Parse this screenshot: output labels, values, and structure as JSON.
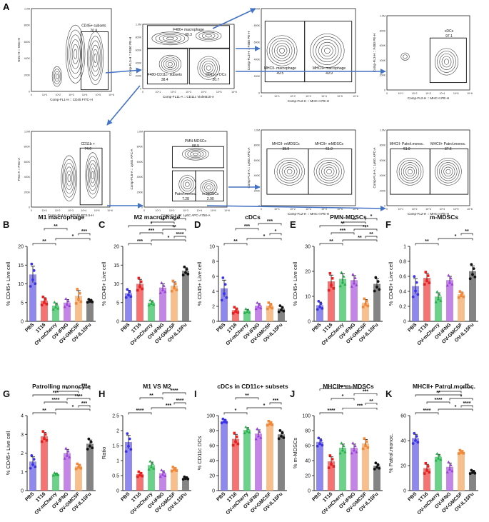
{
  "flow": {
    "panel_label": "A",
    "plots": [
      {
        "id": "p1",
        "xlabel": "Comp-FL1-H :: CD45 FITC-H",
        "ylabel": "SSC-H :: SSC-H",
        "gates": [
          {
            "name": "CD45+ subsets",
            "value": "70.8"
          }
        ]
      },
      {
        "id": "p2",
        "xlabel": "Comp-FL11-A :: CD11c Violet610-A",
        "ylabel": "Comp-FL3-H :: F480 PE-H",
        "gates": [
          {
            "name": "F480+ macrophage",
            "value": "39.3"
          },
          {
            "name": "F480-CD11c- subsets",
            "value": "38.4"
          },
          {
            "name": "CD11c+ DCs",
            "value": "20.7"
          }
        ]
      },
      {
        "id": "p3",
        "xlabel": "Comp-FL2-H :: MHC-II PE-H",
        "ylabel": "Comp-FL3-H :: F480 PE-H",
        "gates": [
          {
            "name": "MHCII- macrophage",
            "value": "49.5"
          },
          {
            "name": "MHCII+ macrophage",
            "value": "49.9"
          }
        ]
      },
      {
        "id": "p4",
        "xlabel": "Comp-FL2-H :: MHC-II PE-H",
        "ylabel": "Comp-FL3-H :: F480 PE-H",
        "gates": [
          {
            "name": "cDCs",
            "value": "97.1"
          }
        ]
      },
      {
        "id": "p5",
        "xlabel": "Comp-FL4-H :: CD11b PC5.5-H",
        "ylabel": "FSC-A :: FSC-A",
        "gates": [
          {
            "name": "CD11b +",
            "value": "74.6"
          }
        ]
      },
      {
        "id": "p6",
        "xlabel": "Comp-FL8-A :: Ly6C APC-A750-A",
        "ylabel": "Comp-FL6-A :: Ly6G APC-A",
        "gates": [
          {
            "name": "PMN-MDSCs",
            "value": "88.9"
          },
          {
            "name": "Patrol.monoc.",
            "value": "7.28"
          },
          {
            "name": "m-MDSCs",
            "value": "2.90"
          }
        ]
      },
      {
        "id": "p7",
        "xlabel": "Comp-FL2-H :: MHC-II PE-H",
        "ylabel": "Comp-FL6-A :: Ly6G APC-A",
        "gates": [
          {
            "name": "MHCII- mMDSCs",
            "value": "38.9"
          },
          {
            "name": "MHCII+ mMDSCs",
            "value": "61.0"
          }
        ]
      },
      {
        "id": "p8",
        "xlabel": "Comp-FL2-H :: MHC-II PE-H",
        "ylabel": "Comp-FL6-A :: Ly6G APC-A",
        "gates": [
          {
            "name": "MHCII- Patrol.monoc.",
            "value": "61.9"
          },
          {
            "name": "MHCII+ Patrol.monoc.",
            "value": "37.6"
          }
        ]
      }
    ],
    "ytick_labels": [
      "1.0M",
      "800K",
      "600K",
      "400K",
      "200K",
      "0"
    ],
    "xtick_labels": [
      "0",
      "10^1",
      "10^2",
      "10^3",
      "10^4",
      "10^5",
      "10^6"
    ]
  },
  "chart_data": [
    {
      "panel": "B",
      "type": "bar",
      "title": "M1 macrophage",
      "ylabel": "% CD45+ Live cell",
      "ylim": [
        0,
        20
      ],
      "yticks": [
        0,
        5,
        10,
        15,
        20
      ],
      "categories": [
        "PBS",
        "1T16",
        "OV-mCherry",
        "OV-IFNG",
        "OV-GMCSF",
        "OV-IL15Fu"
      ],
      "values": [
        12.5,
        5.5,
        4.2,
        5.0,
        6.8,
        5.5
      ],
      "errors": [
        2.2,
        0.8,
        0.7,
        0.8,
        1.4,
        0.3
      ],
      "sig": [
        "**",
        "*",
        "***",
        "**"
      ]
    },
    {
      "panel": "C",
      "type": "bar",
      "title": "M2 macrophage",
      "ylabel": "% CD45+ Live cell",
      "ylim": [
        0,
        20
      ],
      "yticks": [
        0,
        5,
        10,
        15,
        20
      ],
      "categories": [
        "PBS",
        "1T16",
        "OV-mCherry",
        "OV-IFNG",
        "OV-GMCSF",
        "OV-IL15Fu"
      ],
      "values": [
        7.5,
        10.0,
        5.0,
        9.0,
        9.5,
        13.5
      ],
      "errors": [
        0.8,
        1.2,
        0.5,
        1.0,
        1.0,
        0.8
      ],
      "sig": [
        "***",
        "*",
        "****",
        "***",
        "**",
        "*",
        "**",
        "*"
      ]
    },
    {
      "panel": "D",
      "type": "bar",
      "title": "cDCs",
      "ylabel": "% CD45+ Live cell",
      "ylim": [
        0,
        10
      ],
      "yticks": [
        0,
        2,
        4,
        6,
        8,
        10
      ],
      "categories": [
        "PBS",
        "1T16",
        "OV-mCherry",
        "OV-IFNG",
        "OV-GMCSF",
        "OV-IL15Fu"
      ],
      "values": [
        4.4,
        1.5,
        1.4,
        2.1,
        2.1,
        1.7
      ],
      "errors": [
        1.1,
        0.3,
        0.2,
        0.3,
        0.3,
        0.3
      ],
      "sig": [
        "**",
        "*",
        "*",
        "***",
        "***"
      ]
    },
    {
      "panel": "E",
      "type": "bar",
      "title": "PMN-MDSCs",
      "ylabel": "% CD45+ Live cell",
      "ylim": [
        0,
        30
      ],
      "yticks": [
        0,
        10,
        20,
        30
      ],
      "categories": [
        "PBS",
        "1T16",
        "OV-mCherry",
        "OV-IFNG",
        "OV-GMCSF",
        "OV-IL15Fu"
      ],
      "values": [
        6.5,
        16.0,
        17.0,
        16.5,
        7.5,
        15.0
      ],
      "errors": [
        1.2,
        2.5,
        2.0,
        1.8,
        1.2,
        2.0
      ],
      "sig": [
        "**",
        "**",
        "**",
        "***",
        "***",
        "**",
        "**",
        "*"
      ]
    },
    {
      "panel": "F",
      "type": "bar",
      "title": "m-MDSCs",
      "ylabel": "% CD45+ Live cell",
      "ylim": [
        0,
        1.0
      ],
      "yticks": [
        0.0,
        0.2,
        0.4,
        0.6,
        0.8,
        1.0
      ],
      "categories": [
        "PBS",
        "1T16",
        "OV-mCherry",
        "OV-IFNG",
        "OV-GMCSF",
        "OV-IL15Fu"
      ],
      "values": [
        0.47,
        0.58,
        0.33,
        0.55,
        0.36,
        0.67
      ],
      "errors": [
        0.1,
        0.06,
        0.05,
        0.05,
        0.03,
        0.07
      ],
      "sig": [
        "**",
        "*",
        "**"
      ]
    },
    {
      "panel": "G",
      "type": "bar",
      "title": "Patrolling monocyte",
      "ylabel": "% CD45+ Live cell",
      "ylim": [
        0,
        4
      ],
      "yticks": [
        0,
        1,
        2,
        3,
        4
      ],
      "categories": [
        "PBS",
        "1T16",
        "OV-mCherry",
        "OV-IFNG",
        "OV-GMCSF",
        "OV-IL15Fu"
      ],
      "values": [
        1.55,
        2.9,
        0.88,
        2.0,
        1.3,
        2.5
      ],
      "errors": [
        0.25,
        0.2,
        0.05,
        0.2,
        0.1,
        0.2
      ],
      "sig": [
        "**",
        "*",
        "***",
        "****",
        "****",
        "***",
        "*",
        "***"
      ]
    },
    {
      "panel": "H",
      "type": "bar",
      "title": "M1 VS M2",
      "ylabel": "Ratio",
      "ylim": [
        0,
        2.5
      ],
      "yticks": [
        0.0,
        0.5,
        1.0,
        1.5,
        2.0,
        2.5
      ],
      "categories": [
        "PBS",
        "1T16",
        "OV-mCherry",
        "OV-IFNG",
        "OV-GMCSF",
        "OV-IL15Fu"
      ],
      "values": [
        1.62,
        0.55,
        0.85,
        0.58,
        0.72,
        0.42
      ],
      "errors": [
        0.22,
        0.06,
        0.1,
        0.08,
        0.05,
        0.03
      ],
      "sig": [
        "****",
        "***",
        "****",
        "**",
        "****"
      ]
    },
    {
      "panel": "I",
      "type": "bar",
      "title": "cDCs in CD11c+ subsets",
      "ylabel": "% CD11c DCs",
      "ylim": [
        0,
        100
      ],
      "yticks": [
        0,
        20,
        40,
        60,
        80,
        100
      ],
      "categories": [
        "PBS",
        "1T16",
        "OV-mCherry",
        "OV-IFNG",
        "OV-GMCSF",
        "OV-IL15Fu"
      ],
      "values": [
        93,
        69,
        81,
        76,
        90,
        75
      ],
      "errors": [
        2,
        6,
        3,
        5,
        2,
        4
      ],
      "sig": [
        "*",
        "*",
        "***",
        "**"
      ]
    },
    {
      "panel": "J",
      "type": "bar",
      "title": "MHCII+ m-MDSCs",
      "ylabel": "% m-MDSCs",
      "ylim": [
        0,
        100
      ],
      "yticks": [
        0,
        20,
        40,
        60,
        80,
        100
      ],
      "categories": [
        "PBS",
        "1T16",
        "OV-mCherry",
        "OV-IFNG",
        "OV-GMCSF",
        "OV-IL15Fu"
      ],
      "values": [
        65,
        39,
        57,
        57,
        63,
        33
      ],
      "errors": [
        4,
        6,
        5,
        5,
        5,
        3
      ],
      "sig": [
        "****",
        "***",
        "**",
        "*",
        "***",
        "***"
      ]
    },
    {
      "panel": "K",
      "type": "bar",
      "title": "MHCII+ Patrol.monoc.",
      "ylabel": "% Patrol.monoc.",
      "ylim": [
        0,
        60
      ],
      "yticks": [
        0,
        20,
        40,
        60
      ],
      "categories": [
        "PBS",
        "1T16",
        "OV-mCherry",
        "OV-IFNG",
        "OV-GMCSF",
        "OV-IL15Fu"
      ],
      "values": [
        42,
        18,
        27,
        19,
        31,
        15
      ],
      "errors": [
        3,
        3,
        2,
        3,
        1,
        1
      ],
      "sig": [
        "****",
        "*",
        "****",
        "****",
        "*",
        "**",
        "*",
        "**"
      ]
    }
  ],
  "colors": [
    "#7b73ea",
    "#f25b5b",
    "#52c974",
    "#b971e3",
    "#f7b47a",
    "#6e6e6e"
  ],
  "point_colors": [
    "#3b33e8",
    "#e82020",
    "#24b04a",
    "#9b3fe0",
    "#f08a3a",
    "#111111"
  ]
}
